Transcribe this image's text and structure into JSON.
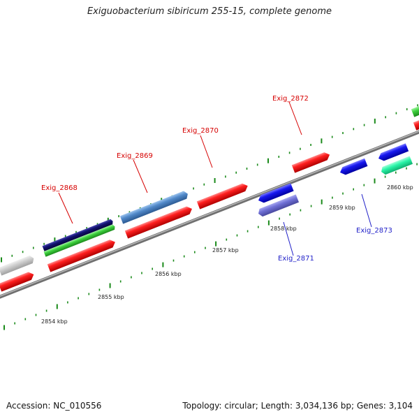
{
  "title": "Exiguobacterium sibiricum 255-15, complete genome",
  "footer": {
    "accession": "Accession: NC_010556",
    "summary": "Topology: circular; Length: 3,034,136 bp; Genes: 3,104"
  },
  "colors": {
    "forward_gene_label": "#d60000",
    "reverse_gene_label": "#1f1fc8",
    "tick": "#1a8a1a",
    "backbone": "#888888",
    "red_cds": "#f21b1b",
    "blue_cds": "#1a1ae6",
    "light_blue_cds": "#4f86c6",
    "navy_cds": "#12126e",
    "green_cds": "#3ccf3c",
    "grey_cds": "#cccccc",
    "violet_cds": "#7070d6",
    "teal_cds": "#2af5a8"
  },
  "ruler": {
    "labels": [
      "2854 kbp",
      "2855 kbp",
      "2856 kbp",
      "2857 kbp",
      "2858 kbp",
      "2859 kbp",
      "2860 kbp"
    ]
  },
  "genes": {
    "forward_labels": [
      "Exig_2868",
      "Exig_2869",
      "Exig_2870",
      "Exig_2872"
    ],
    "reverse_labels": [
      "Exig_2871",
      "Exig_2873"
    ]
  }
}
